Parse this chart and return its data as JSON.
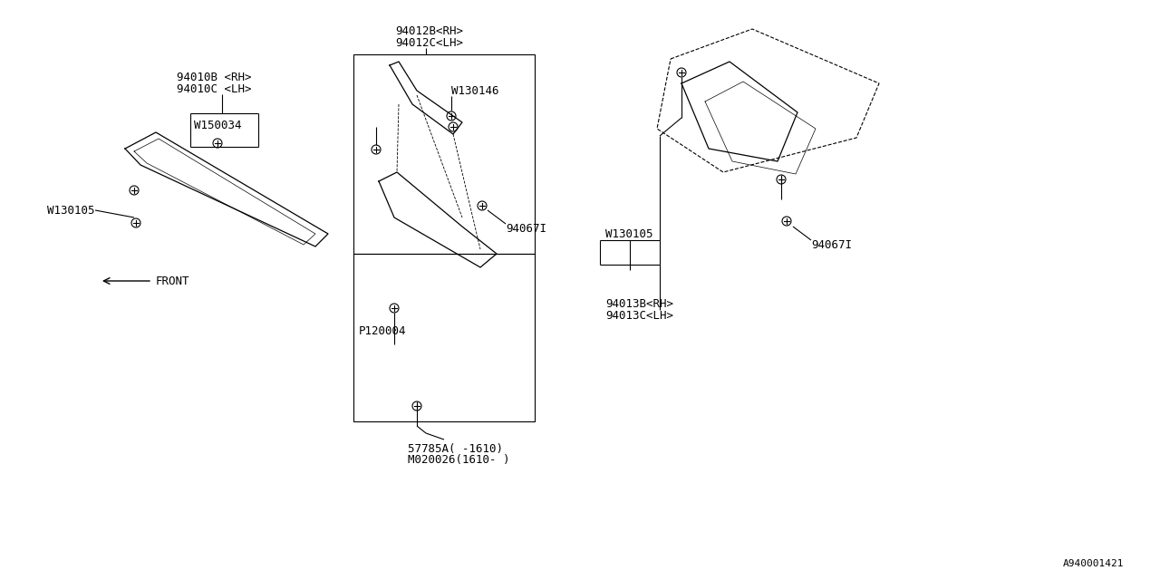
{
  "bg_color": "#ffffff",
  "line_color": "#000000",
  "font_family": "monospace",
  "font_size": 9,
  "watermark": "A940001421",
  "labels": {
    "part_94010B": "94010B <RH>",
    "part_94010C": "94010C <LH>",
    "part_W150034": "W150034",
    "part_W130105_left": "W130105",
    "part_94012B": "94012B<RH>",
    "part_94012C": "94012C<LH>",
    "part_W130146": "W130146",
    "part_94067I_mid": "94067I",
    "part_P120004": "P120004",
    "part_57785A": "57785A( -1610)",
    "part_M020026": "M020026(1610- )",
    "part_W130105_right": "W130105",
    "part_94013B": "94013B<RH>",
    "part_94013C": "94013C<LH>",
    "part_94067I_right": "94067I",
    "front_label": "FRONT"
  }
}
